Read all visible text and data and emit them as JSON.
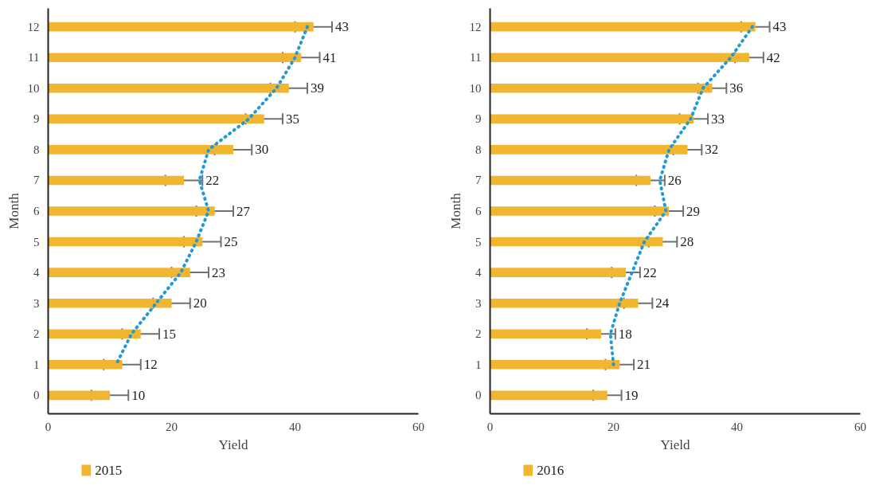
{
  "chart_data": [
    {
      "type": "bar",
      "orientation": "horizontal",
      "xlabel": "Yield",
      "ylabel": "Month",
      "categories": [
        "12",
        "11",
        "10",
        "9",
        "8",
        "7",
        "6",
        "5",
        "4",
        "3",
        "2",
        "1",
        "0"
      ],
      "xlim": [
        0,
        60
      ],
      "xticks": [
        0,
        20,
        40,
        60
      ],
      "grid": false,
      "legend": "bottom left",
      "series": [
        {
          "name": "2015",
          "color": "#f2b530",
          "values": [
            43,
            41,
            39,
            35,
            30,
            22,
            27,
            25,
            23,
            20,
            15,
            12,
            10
          ],
          "value_labels": [
            "43",
            "41",
            "39",
            "35",
            "30",
            "22",
            "27",
            "25",
            "23",
            "20",
            "15",
            "12",
            "10"
          ],
          "errors": [
            3,
            3,
            3,
            3,
            3,
            3,
            3,
            3,
            3,
            3,
            3,
            3,
            3
          ]
        },
        {
          "type": "line",
          "color": "#1f9ad6",
          "line_style": "dotted",
          "values": [
            42,
            40,
            37,
            32.5,
            26,
            24.5,
            26,
            24,
            21.5,
            17.5,
            13.5,
            11,
            null
          ]
        }
      ]
    },
    {
      "type": "bar",
      "orientation": "horizontal",
      "xlabel": "Yield",
      "ylabel": "Month",
      "categories": [
        "12",
        "11",
        "10",
        "9",
        "8",
        "7",
        "6",
        "5",
        "4",
        "3",
        "2",
        "1",
        "0"
      ],
      "xlim": [
        0,
        60
      ],
      "xticks": [
        0,
        20,
        40,
        60
      ],
      "grid": false,
      "legend": "bottom left",
      "series": [
        {
          "name": "2016",
          "color": "#f2b530",
          "values": [
            43,
            42,
            36,
            33,
            32,
            26,
            29,
            28,
            22,
            24,
            18,
            21,
            19
          ],
          "value_labels": [
            "43",
            "42",
            "36",
            "33",
            "32",
            "26",
            "29",
            "28",
            "22",
            "24",
            "18",
            "21",
            "19"
          ],
          "errors": [
            2.3,
            2.3,
            2.3,
            2.3,
            2.3,
            2.3,
            2.3,
            2.3,
            2.3,
            2.3,
            2.3,
            2.3,
            2.3
          ]
        },
        {
          "type": "line",
          "color": "#1f9ad6",
          "line_style": "dotted",
          "values": [
            42.5,
            39,
            34.5,
            32.5,
            29,
            27.5,
            28.5,
            25,
            23,
            21,
            19.5,
            20,
            null
          ]
        }
      ]
    }
  ]
}
